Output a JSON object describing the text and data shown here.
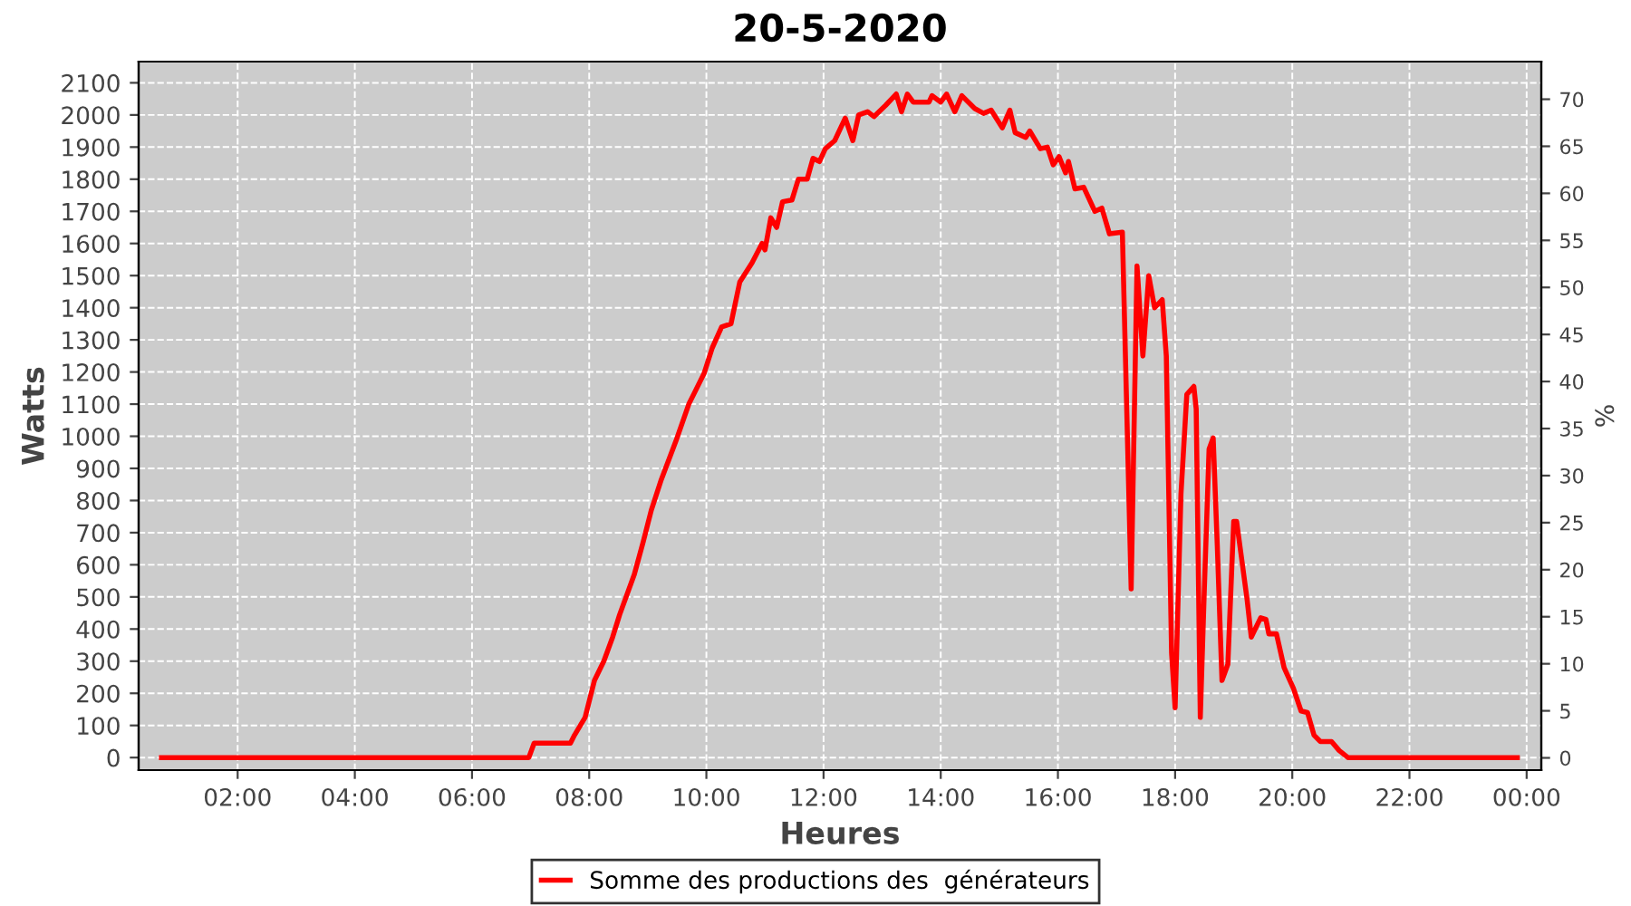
{
  "chart_data": {
    "type": "line",
    "title": "20-5-2020",
    "xlabel": "Heures",
    "ylabel": "Watts",
    "y2label": "%",
    "x": [
      0.7,
      6.97,
      7.06,
      7.68,
      7.75,
      7.93,
      8.09,
      8.25,
      8.4,
      8.52,
      8.77,
      8.92,
      9.06,
      9.23,
      9.48,
      9.7,
      9.96,
      10.1,
      10.26,
      10.42,
      10.57,
      10.78,
      10.95,
      11.0,
      11.1,
      11.2,
      11.3,
      11.46,
      11.57,
      11.72,
      11.82,
      11.93,
      12.03,
      12.19,
      12.37,
      12.5,
      12.6,
      12.75,
      12.86,
      13.06,
      13.24,
      13.33,
      13.43,
      13.53,
      13.8,
      13.85,
      14.0,
      14.1,
      14.24,
      14.36,
      14.58,
      14.73,
      14.86,
      15.05,
      15.18,
      15.27,
      15.45,
      15.52,
      15.7,
      15.82,
      15.92,
      16.02,
      16.13,
      16.18,
      16.29,
      16.44,
      16.63,
      16.75,
      16.88,
      17.1,
      17.25,
      17.35,
      17.45,
      17.55,
      17.65,
      17.78,
      17.85,
      17.94,
      18.0,
      18.1,
      18.2,
      18.32,
      18.36,
      18.43,
      18.5,
      18.58,
      18.65,
      18.72,
      18.8,
      18.9,
      19.0,
      19.05,
      19.23,
      19.3,
      19.46,
      19.55,
      19.6,
      19.73,
      19.86,
      20.02,
      20.15,
      20.26,
      20.37,
      20.48,
      20.67,
      20.8,
      20.95,
      23.84
    ],
    "series": [
      {
        "name": "Somme des productions des  générateurs",
        "color": "#ff0000",
        "values": [
          0,
          0,
          45,
          45,
          70,
          125,
          240,
          300,
          375,
          445,
          570,
          670,
          770,
          865,
          985,
          1100,
          1195,
          1275,
          1340,
          1350,
          1480,
          1540,
          1600,
          1580,
          1680,
          1650,
          1730,
          1735,
          1800,
          1800,
          1865,
          1855,
          1895,
          1920,
          1990,
          1920,
          2000,
          2010,
          1995,
          2030,
          2065,
          2010,
          2065,
          2040,
          2040,
          2060,
          2040,
          2065,
          2010,
          2060,
          2020,
          2005,
          2015,
          1960,
          2015,
          1945,
          1930,
          1950,
          1895,
          1900,
          1845,
          1870,
          1820,
          1855,
          1770,
          1775,
          1700,
          1710,
          1630,
          1635,
          525,
          1530,
          1250,
          1500,
          1400,
          1425,
          1250,
          325,
          155,
          820,
          1130,
          1155,
          1085,
          125,
          530,
          960,
          995,
          660,
          240,
          290,
          735,
          735,
          490,
          375,
          435,
          430,
          385,
          385,
          280,
          215,
          145,
          140,
          70,
          50,
          50,
          22,
          0,
          0
        ]
      }
    ],
    "xlim": [
      0.31,
      24.25
    ],
    "xticks": [
      {
        "value": 2,
        "label": "02:00"
      },
      {
        "value": 4,
        "label": "04:00"
      },
      {
        "value": 6,
        "label": "06:00"
      },
      {
        "value": 8,
        "label": "08:00"
      },
      {
        "value": 10,
        "label": "10:00"
      },
      {
        "value": 12,
        "label": "12:00"
      },
      {
        "value": 14,
        "label": "14:00"
      },
      {
        "value": 16,
        "label": "16:00"
      },
      {
        "value": 18,
        "label": "18:00"
      },
      {
        "value": 20,
        "label": "20:00"
      },
      {
        "value": 22,
        "label": "22:00"
      },
      {
        "value": 24,
        "label": "00:00"
      }
    ],
    "ylim": [
      -39,
      2166
    ],
    "yticks": [
      0,
      100,
      200,
      300,
      400,
      500,
      600,
      700,
      800,
      900,
      1000,
      1100,
      1200,
      1300,
      1400,
      1500,
      1600,
      1700,
      1800,
      1900,
      2000,
      2100
    ],
    "y2lim": [
      -1.3,
      74
    ],
    "y2ticks": [
      0,
      5,
      10,
      15,
      20,
      25,
      30,
      35,
      40,
      45,
      50,
      55,
      60,
      65,
      70
    ],
    "grid": true,
    "legend": "bottom",
    "line_style": "solid",
    "marker": "none"
  }
}
